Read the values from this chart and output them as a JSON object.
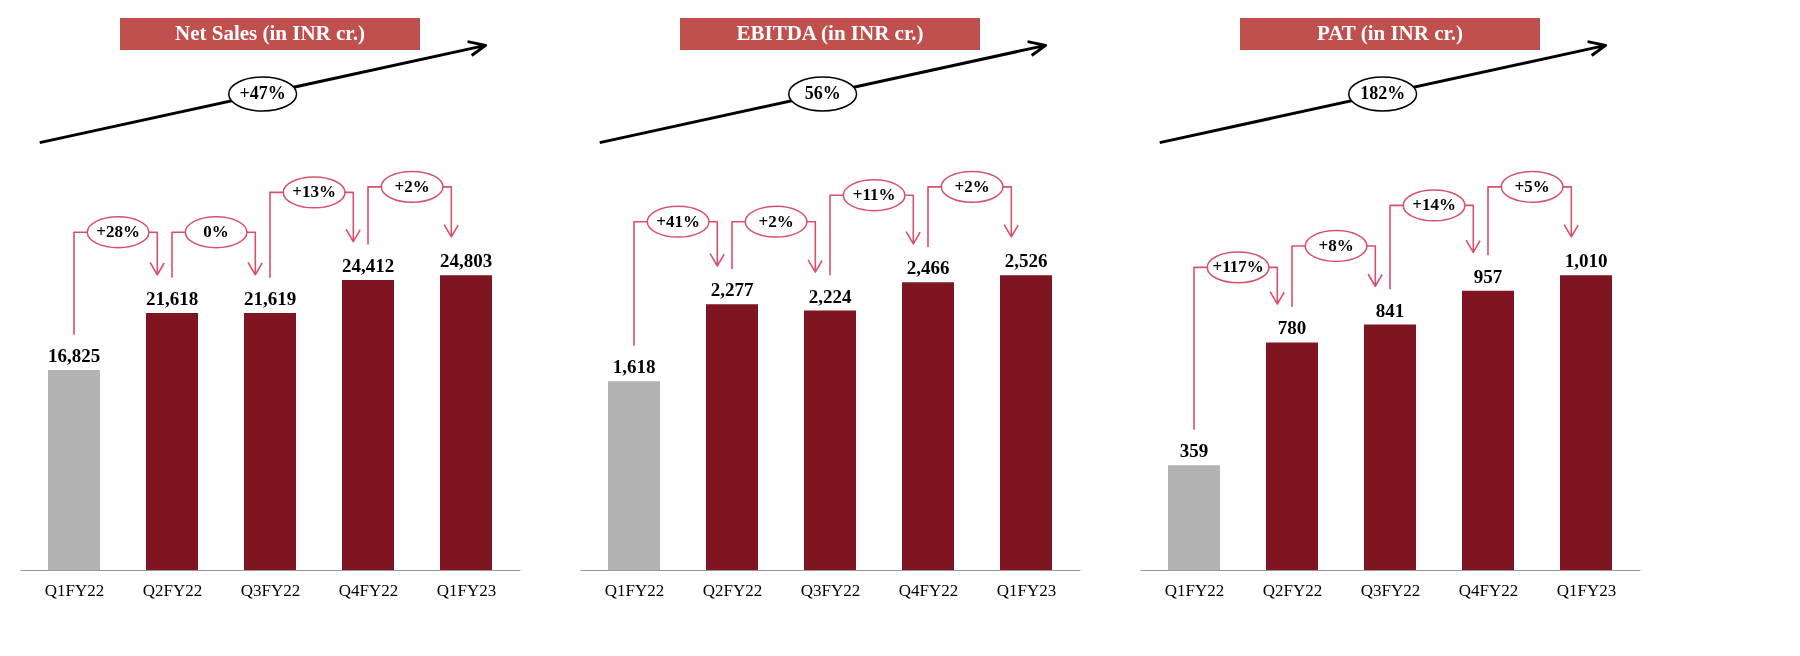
{
  "chart_data": [
    {
      "type": "bar",
      "title": "Net Sales (in INR cr.)",
      "categories": [
        "Q1FY22",
        "Q2FY22",
        "Q3FY22",
        "Q4FY22",
        "Q1FY23"
      ],
      "values": [
        16825,
        21618,
        21619,
        24412,
        24803
      ],
      "colors": [
        "#b3b3b3",
        "#7f1520",
        "#7f1520",
        "#7f1520",
        "#7f1520"
      ],
      "tick_labels": "x",
      "value_labels": [
        "16,825",
        "21,618",
        "21,619",
        "24,412",
        "24,803"
      ],
      "annotations": [
        "+47%",
        "+28%",
        "0%",
        "+13%",
        "+2%"
      ]
    },
    {
      "type": "bar",
      "title": "EBITDA (in INR cr.)",
      "categories": [
        "Q1FY22",
        "Q2FY22",
        "Q3FY22",
        "Q4FY22",
        "Q1FY23"
      ],
      "values": [
        1618,
        2277,
        2224,
        2466,
        2526
      ],
      "colors": [
        "#b3b3b3",
        "#7f1520",
        "#7f1520",
        "#7f1520",
        "#7f1520"
      ],
      "tick_labels": "x",
      "value_labels": [
        "1,618",
        "2,277",
        "2,224",
        "2,466",
        "2,526"
      ],
      "annotations": [
        "56%",
        "+41%",
        "+2%",
        "+11%",
        "+2%"
      ]
    },
    {
      "type": "bar",
      "title": "PAT (in INR cr.)",
      "categories": [
        "Q1FY22",
        "Q2FY22",
        "Q3FY22",
        "Q4FY22",
        "Q1FY23"
      ],
      "values": [
        359,
        780,
        841,
        957,
        1010
      ],
      "colors": [
        "#b3b3b3",
        "#7f1520",
        "#7f1520",
        "#7f1520",
        "#7f1520"
      ],
      "tick_labels": "x",
      "value_labels": [
        "359",
        "780",
        "841",
        "957",
        "1,010"
      ],
      "annotations": [
        "182%",
        "+117%",
        "+8%",
        "+14%",
        "+5%"
      ]
    }
  ]
}
